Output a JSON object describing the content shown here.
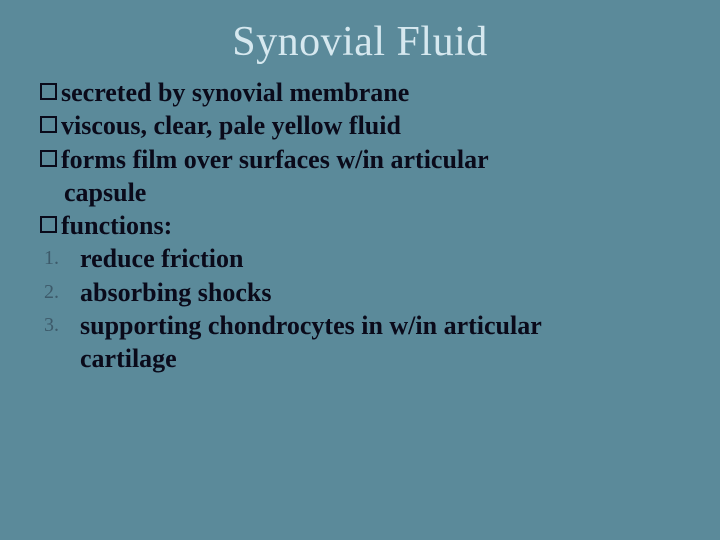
{
  "slide": {
    "title": "Synovial Fluid",
    "background_color": "#5b8a9a",
    "title_color": "#d6e8ef",
    "text_color": "#0a0a1a",
    "number_color": "#3d5a6a",
    "title_fontsize": 42,
    "body_fontsize": 26,
    "bullets": [
      {
        "text": "secreted by synovial membrane"
      },
      {
        "text": "viscous, clear, pale yellow fluid"
      },
      {
        "text": "forms film over surfaces w/in articular",
        "cont": "capsule"
      },
      {
        "text": "functions:"
      }
    ],
    "numbered": [
      {
        "n": "1.",
        "text": "reduce friction"
      },
      {
        "n": "2.",
        "text": "absorbing shocks"
      },
      {
        "n": "3.",
        "text": "supporting chondrocytes in w/in articular",
        "cont": "cartilage"
      }
    ]
  }
}
